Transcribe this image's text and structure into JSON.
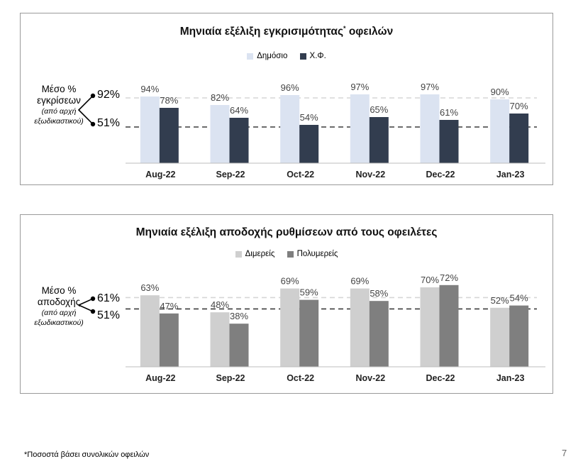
{
  "chart_data": [
    {
      "type": "bar",
      "title": "Μηνιαία εξέλιξη εγκρισιμότητας",
      "title_marker": "*",
      "title_suffix": "οφειλών",
      "categories": [
        "Aug-22",
        "Sep-22",
        "Oct-22",
        "Nov-22",
        "Dec-22",
        "Jan-23"
      ],
      "series": [
        {
          "name": "Δημόσιο",
          "color": "#dbe3f1",
          "values": [
            94,
            82,
            96,
            97,
            97,
            90
          ],
          "labels": [
            "94%",
            "82%",
            "96%",
            "97%",
            "97%",
            "90%"
          ]
        },
        {
          "name": "Χ.Φ.",
          "color": "#323d4f",
          "values": [
            78,
            64,
            54,
            65,
            61,
            70
          ],
          "labels": [
            "78%",
            "64%",
            "54%",
            "65%",
            "61%",
            "70%"
          ]
        }
      ],
      "ylim": [
        0,
        100
      ],
      "average_lines": [
        {
          "value": 92,
          "label": "92%",
          "style": "dashed-light"
        },
        {
          "value": 51,
          "label": "51%",
          "style": "dashed-dark"
        }
      ],
      "average_caption": {
        "line1": "Μέσο %",
        "line2": "εγκρίσεων",
        "sub1": "(από αρχή",
        "sub2": "εξωδικαστικού)"
      },
      "grid": false,
      "legend_position": "top-center"
    },
    {
      "type": "bar",
      "title": "Μηνιαία εξέλιξη αποδοχής ρυθμίσεων από τους οφειλέτες",
      "categories": [
        "Aug-22",
        "Sep-22",
        "Oct-22",
        "Nov-22",
        "Dec-22",
        "Jan-23"
      ],
      "series": [
        {
          "name": "Διμερείς",
          "color": "#cfcfcf",
          "values": [
            63,
            48,
            69,
            69,
            70,
            52
          ],
          "labels": [
            "63%",
            "48%",
            "69%",
            "69%",
            "70%",
            "52%"
          ]
        },
        {
          "name": "Πολυμερείς",
          "color": "#7f7f7f",
          "values": [
            47,
            38,
            59,
            58,
            72,
            54
          ],
          "labels": [
            "47%",
            "38%",
            "59%",
            "58%",
            "72%",
            "54%"
          ]
        }
      ],
      "ylim": [
        0,
        100
      ],
      "average_lines": [
        {
          "value": 61,
          "label": "61%",
          "style": "dashed-light"
        },
        {
          "value": 51,
          "label": "51%",
          "style": "dashed-dark"
        }
      ],
      "average_caption": {
        "line1": "Μέσο %",
        "line2": "αποδοχής",
        "sub1": "(από αρχή",
        "sub2": "εξωδικαστικού)"
      },
      "grid": false,
      "legend_position": "top-center"
    }
  ],
  "footnote": "*Ποσοστά βάσει συνολικών οφειλών",
  "page_number": "7"
}
